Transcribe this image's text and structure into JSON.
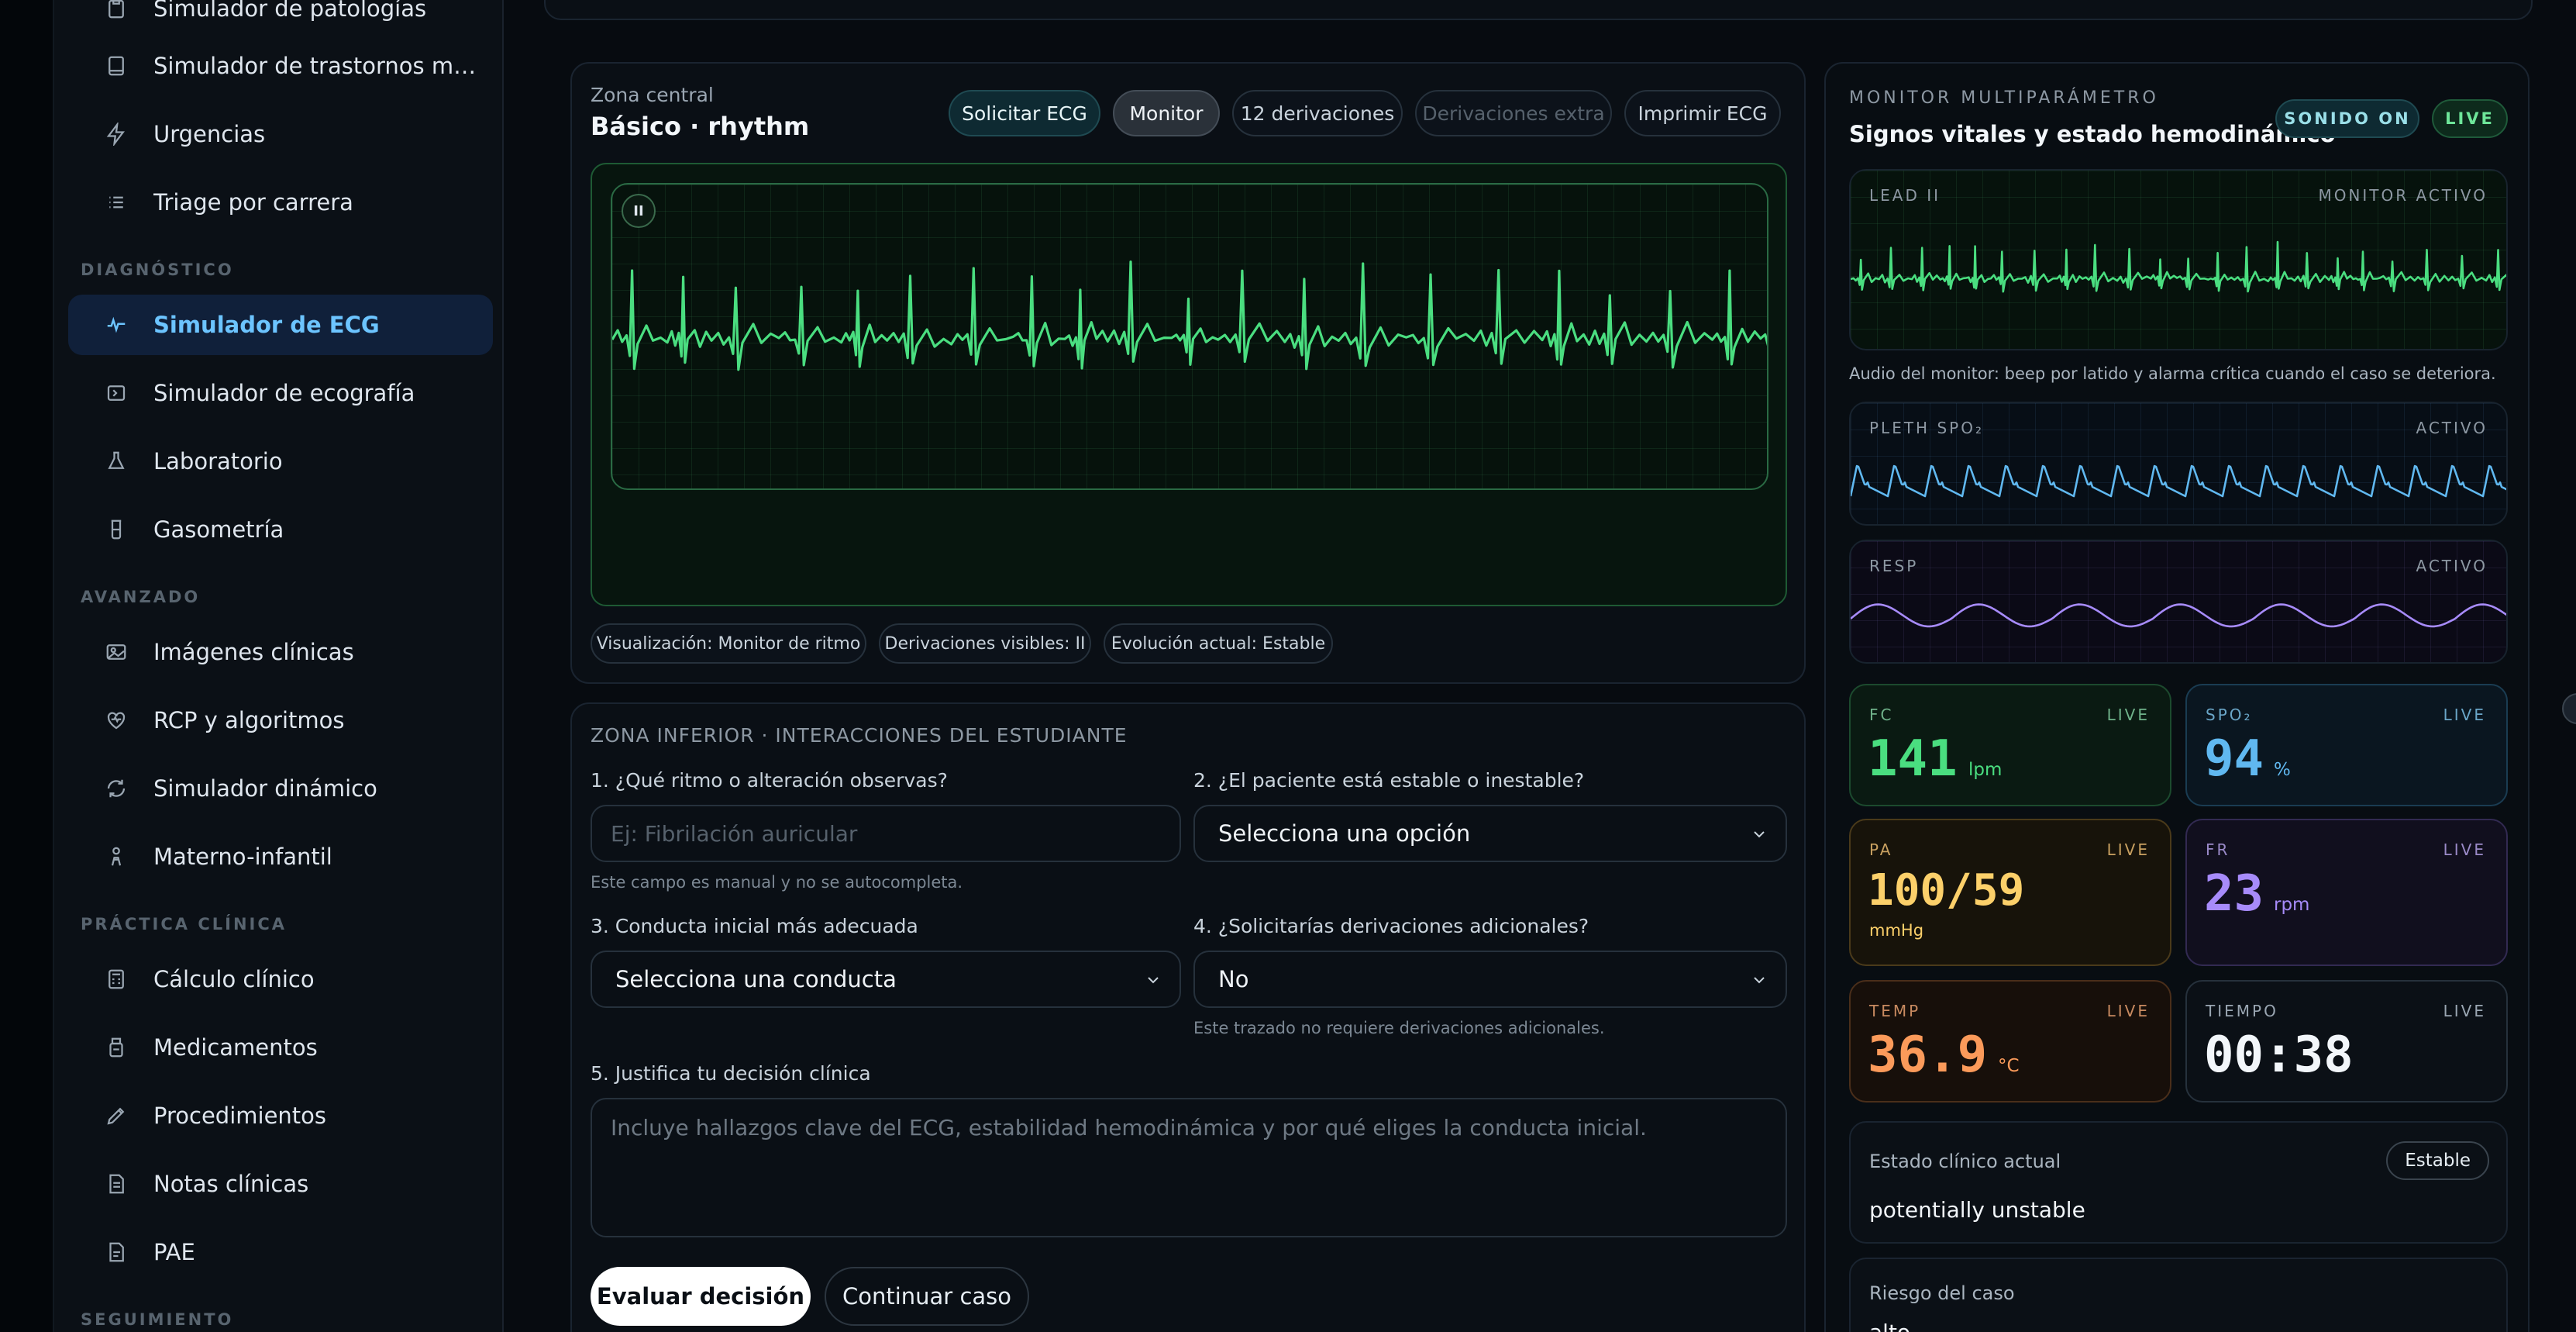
{
  "sidebar": {
    "items_top": [
      {
        "label": "Simulador de patologías",
        "icon": "clipboard-icon"
      },
      {
        "label": "Simulador de trastornos mentales",
        "icon": "book-icon"
      },
      {
        "label": "Urgencias",
        "icon": "bolt-icon"
      },
      {
        "label": "Triage por carrera",
        "icon": "list-icon"
      }
    ],
    "sections": {
      "diagnostico": "DIAGNÓSTICO",
      "avanzado": "AVANZADO",
      "practica": "PRÁCTICA CLÍNICA",
      "seguimiento": "SEGUIMIENTO"
    },
    "diagnostico_items": [
      {
        "label": "Simulador de ECG",
        "icon": "ecg-pulse-icon",
        "active": true
      },
      {
        "label": "Simulador de ecografía",
        "icon": "ultrasound-icon"
      },
      {
        "label": "Laboratorio",
        "icon": "flask-icon"
      },
      {
        "label": "Gasometría",
        "icon": "beaker-icon"
      }
    ],
    "avanzado_items": [
      {
        "label": "Imágenes clínicas",
        "icon": "image-icon"
      },
      {
        "label": "RCP y algoritmos",
        "icon": "heart-pulse-icon"
      },
      {
        "label": "Simulador dinámico",
        "icon": "refresh-icon"
      },
      {
        "label": "Materno-infantil",
        "icon": "mother-child-icon"
      }
    ],
    "practica_items": [
      {
        "label": "Cálculo clínico",
        "icon": "calculator-icon"
      },
      {
        "label": "Medicamentos",
        "icon": "pill-bottle-icon"
      },
      {
        "label": "Procedimientos",
        "icon": "pencil-icon"
      },
      {
        "label": "Notas clínicas",
        "icon": "note-icon"
      },
      {
        "label": "PAE",
        "icon": "document-icon"
      }
    ]
  },
  "central": {
    "zone_label": "Zona central",
    "title": "Básico · rhythm",
    "buttons": {
      "request_ecg": "Solicitar ECG",
      "monitor": "Monitor",
      "leads12": "12 derivaciones",
      "extra_leads": "Derivaciones extra",
      "print_ecg": "Imprimir ECG"
    },
    "pause_glyph": "II",
    "chips": {
      "view": "Visualización: Monitor de ritmo",
      "leads": "Derivaciones visibles: II",
      "evolution": "Evolución actual: Estable"
    }
  },
  "lower": {
    "zone_label": "ZONA INFERIOR · INTERACCIONES DEL ESTUDIANTE",
    "q1": {
      "label": "1. ¿Qué ritmo o alteración observas?",
      "placeholder": "Ej: Fibrilación auricular",
      "hint": "Este campo es manual y no se autocompleta."
    },
    "q2": {
      "label": "2. ¿El paciente está estable o inestable?",
      "value": "Selecciona una opción"
    },
    "q3": {
      "label": "3. Conducta inicial más adecuada",
      "value": "Selecciona una conducta"
    },
    "q4": {
      "label": "4. ¿Solicitarías derivaciones adicionales?",
      "value": "No",
      "hint": "Este trazado no requiere derivaciones adicionales."
    },
    "q5": {
      "label": "5. Justifica tu decisión clínica",
      "placeholder": "Incluye hallazgos clave del ECG, estabilidad hemodinámica y por qué eliges la conducta inicial."
    },
    "evaluate_btn": "Evaluar decisión",
    "continue_btn": "Continuar caso"
  },
  "monitor": {
    "kicker": "MONITOR MULTIPARÁMETRO",
    "title": "Signos vitales y estado hemodinámico",
    "sound_badge": "SONIDO ON",
    "live_badge": "LIVE",
    "lead2": {
      "label": "LEAD II",
      "status": "MONITOR ACTIVO"
    },
    "audio_note": "Audio del monitor: beep por latido y alarma crítica cuando el caso se deteriora.",
    "pleth": {
      "label": "PLETH SPO₂",
      "status": "ACTIVO"
    },
    "resp": {
      "label": "RESP",
      "status": "ACTIVO"
    },
    "vitals": {
      "fc": {
        "label": "FC",
        "live": "LIVE",
        "value": "141",
        "unit": "lpm"
      },
      "spo2": {
        "label": "SPO₂",
        "live": "LIVE",
        "value": "94",
        "unit": "%"
      },
      "pa": {
        "label": "PA",
        "live": "LIVE",
        "value": "100/59",
        "unit": "mmHg"
      },
      "fr": {
        "label": "FR",
        "live": "LIVE",
        "value": "23",
        "unit": "rpm"
      },
      "temp": {
        "label": "TEMP",
        "live": "LIVE",
        "value": "36.9",
        "unit": "°C"
      },
      "time": {
        "label": "TIEMPO",
        "live": "LIVE",
        "value": "00:38"
      }
    },
    "status": {
      "label": "Estado clínico actual",
      "badge": "Estable",
      "value": "potentially unstable"
    },
    "risk": {
      "label": "Riesgo del caso",
      "value": "alto"
    }
  },
  "colors": {
    "ecg": "#4ade80",
    "pleth": "#60b8f0",
    "resp": "#a78bfa",
    "accent": "#6cc4ff"
  }
}
